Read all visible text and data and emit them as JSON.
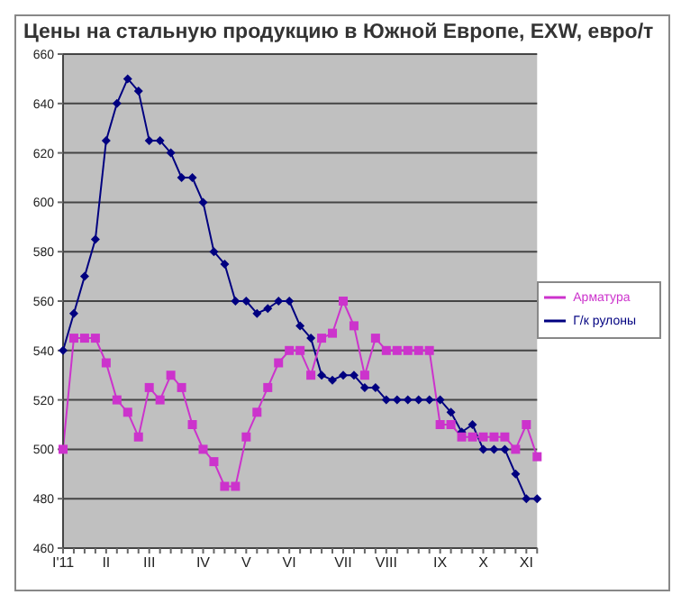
{
  "chart_data": {
    "type": "line",
    "title": "Цены на стальную продукцию в Южной Европе, EXW, евро/т",
    "categories": [
      "I'11",
      null,
      null,
      null,
      "II",
      null,
      null,
      null,
      "III",
      null,
      null,
      null,
      null,
      "IV",
      null,
      null,
      null,
      "V",
      null,
      null,
      null,
      "VI",
      null,
      null,
      null,
      null,
      "VII",
      null,
      null,
      null,
      "VIII",
      null,
      null,
      null,
      null,
      "IX",
      null,
      null,
      null,
      "X",
      null,
      null,
      null,
      "XI",
      null
    ],
    "series": [
      {
        "name": "Г/к рулоны",
        "color": "#000080",
        "marker": "diamond",
        "values": [
          540,
          555,
          570,
          585,
          625,
          640,
          650,
          645,
          625,
          625,
          620,
          610,
          610,
          600,
          580,
          575,
          560,
          560,
          555,
          557,
          560,
          560,
          550,
          545,
          530,
          528,
          530,
          530,
          525,
          525,
          520,
          520,
          520,
          520,
          520,
          520,
          515,
          507,
          510,
          500,
          500,
          500,
          490,
          480,
          480
        ]
      },
      {
        "name": "Арматура",
        "color": "#cc33cc",
        "marker": "square",
        "values": [
          500,
          545,
          545,
          545,
          535,
          520,
          515,
          505,
          525,
          520,
          530,
          525,
          510,
          500,
          495,
          485,
          485,
          505,
          515,
          525,
          535,
          540,
          540,
          530,
          545,
          547,
          560,
          550,
          530,
          545,
          540,
          540,
          540,
          540,
          540,
          510,
          510,
          505,
          505,
          505,
          505,
          505,
          500,
          510,
          497
        ]
      }
    ],
    "ylim": [
      460,
      660
    ],
    "yticks": [
      460,
      480,
      500,
      520,
      540,
      560,
      580,
      600,
      620,
      640,
      660
    ],
    "grid": "y",
    "legend": "right",
    "line_style": "solid"
  }
}
